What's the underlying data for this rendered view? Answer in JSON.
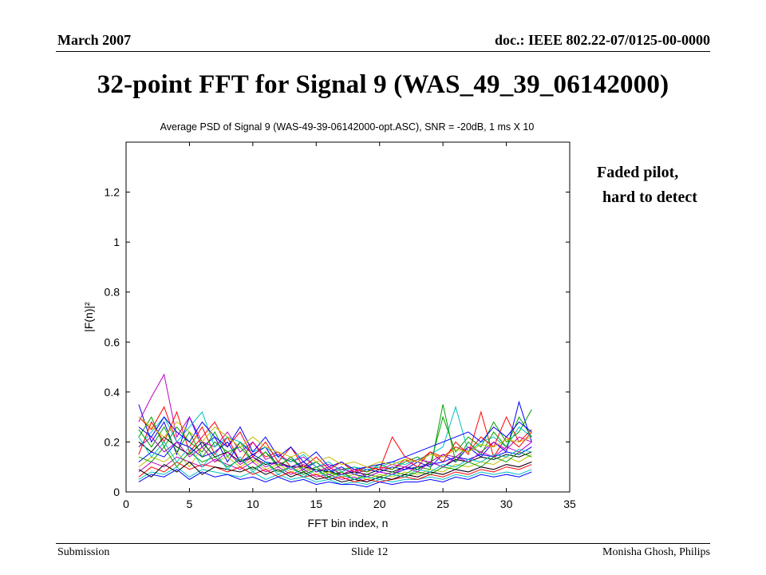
{
  "header": {
    "date": "March 2007",
    "doc": "doc.: IEEE 802.22-07/0125-00-0000"
  },
  "slide_title": "32-point FFT  for Signal 9 (WAS_49_39_06142000)",
  "annotation": {
    "line1": "Faded pilot,",
    "line2": "hard to detect"
  },
  "footer": {
    "left": "Submission",
    "center": "Slide 12",
    "right": "Monisha Ghosh, Philips"
  },
  "chart_data": {
    "type": "line",
    "title": "Average PSD of Signal 9 (WAS-49-39-06142000-opt.ASC), SNR = -20dB, 1 ms X 10",
    "xlabel": "FFT bin index, n",
    "ylabel": "|F(n)|²",
    "xlim": [
      0,
      35
    ],
    "ylim": [
      0,
      1.4
    ],
    "xticks": [
      0,
      5,
      10,
      15,
      20,
      25,
      30,
      35
    ],
    "yticks": [
      0,
      0.2,
      0.4,
      0.6,
      0.8,
      1,
      1.2
    ],
    "x": [
      1,
      2,
      3,
      4,
      5,
      6,
      7,
      8,
      9,
      10,
      11,
      12,
      13,
      14,
      15,
      16,
      17,
      18,
      19,
      20,
      21,
      22,
      23,
      24,
      25,
      26,
      27,
      28,
      29,
      30,
      31,
      32
    ],
    "series_count_note": "many overlaid traces",
    "series": [
      {
        "color": "#0000ff",
        "values": [
          0.35,
          0.2,
          0.28,
          0.15,
          0.3,
          0.18,
          0.22,
          0.12,
          0.2,
          0.15,
          0.18,
          0.1,
          0.14,
          0.09,
          0.12,
          0.08,
          0.1,
          0.07,
          0.09,
          0.08,
          0.1,
          0.09,
          0.12,
          0.1,
          0.15,
          0.12,
          0.18,
          0.14,
          0.2,
          0.16,
          0.36,
          0.2
        ]
      },
      {
        "color": "#ff0000",
        "values": [
          0.3,
          0.25,
          0.34,
          0.2,
          0.18,
          0.26,
          0.15,
          0.22,
          0.12,
          0.2,
          0.14,
          0.16,
          0.1,
          0.12,
          0.08,
          0.1,
          0.07,
          0.09,
          0.08,
          0.1,
          0.09,
          0.13,
          0.1,
          0.16,
          0.12,
          0.2,
          0.15,
          0.32,
          0.14,
          0.22,
          0.18,
          0.24
        ]
      },
      {
        "color": "#00a000",
        "values": [
          0.22,
          0.3,
          0.18,
          0.26,
          0.2,
          0.16,
          0.24,
          0.14,
          0.2,
          0.12,
          0.16,
          0.11,
          0.13,
          0.1,
          0.12,
          0.08,
          0.09,
          0.1,
          0.08,
          0.11,
          0.09,
          0.12,
          0.14,
          0.11,
          0.3,
          0.16,
          0.22,
          0.18,
          0.28,
          0.2,
          0.24,
          0.33
        ]
      },
      {
        "color": "#c000c0",
        "values": [
          0.28,
          0.38,
          0.47,
          0.22,
          0.3,
          0.2,
          0.18,
          0.24,
          0.16,
          0.2,
          0.13,
          0.15,
          0.12,
          0.14,
          0.1,
          0.11,
          0.09,
          0.08,
          0.1,
          0.09,
          0.11,
          0.1,
          0.13,
          0.12,
          0.15,
          0.14,
          0.18,
          0.16,
          0.2,
          0.17,
          0.22,
          0.2
        ]
      },
      {
        "color": "#00c0c0",
        "values": [
          0.18,
          0.24,
          0.3,
          0.2,
          0.26,
          0.32,
          0.18,
          0.22,
          0.2,
          0.16,
          0.18,
          0.14,
          0.12,
          0.15,
          0.1,
          0.12,
          0.08,
          0.1,
          0.09,
          0.1,
          0.12,
          0.11,
          0.13,
          0.15,
          0.18,
          0.34,
          0.16,
          0.2,
          0.22,
          0.18,
          0.26,
          0.22
        ]
      },
      {
        "color": "#000000",
        "values": [
          0.2,
          0.16,
          0.22,
          0.18,
          0.15,
          0.2,
          0.14,
          0.16,
          0.12,
          0.14,
          0.11,
          0.12,
          0.1,
          0.1,
          0.09,
          0.08,
          0.07,
          0.08,
          0.07,
          0.09,
          0.08,
          0.1,
          0.09,
          0.12,
          0.1,
          0.13,
          0.12,
          0.14,
          0.13,
          0.15,
          0.14,
          0.16
        ]
      },
      {
        "color": "#ff0000",
        "values": [
          0.15,
          0.28,
          0.2,
          0.32,
          0.16,
          0.22,
          0.28,
          0.18,
          0.24,
          0.14,
          0.2,
          0.12,
          0.18,
          0.1,
          0.14,
          0.09,
          0.12,
          0.08,
          0.1,
          0.09,
          0.22,
          0.14,
          0.12,
          0.16,
          0.14,
          0.18,
          0.16,
          0.22,
          0.18,
          0.3,
          0.2,
          0.25
        ]
      },
      {
        "color": "#0000ff",
        "values": [
          0.12,
          0.16,
          0.14,
          0.2,
          0.18,
          0.14,
          0.16,
          0.2,
          0.12,
          0.15,
          0.12,
          0.11,
          0.1,
          0.12,
          0.08,
          0.09,
          0.06,
          0.07,
          0.06,
          0.08,
          0.07,
          0.09,
          0.1,
          0.11,
          0.12,
          0.14,
          0.13,
          0.15,
          0.14,
          0.16,
          0.15,
          0.18
        ]
      },
      {
        "color": "#00a000",
        "values": [
          0.25,
          0.18,
          0.26,
          0.16,
          0.24,
          0.14,
          0.2,
          0.16,
          0.18,
          0.12,
          0.16,
          0.1,
          0.14,
          0.08,
          0.1,
          0.07,
          0.08,
          0.05,
          0.07,
          0.06,
          0.08,
          0.07,
          0.1,
          0.09,
          0.35,
          0.12,
          0.2,
          0.15,
          0.24,
          0.18,
          0.3,
          0.22
        ]
      },
      {
        "color": "#c0c000",
        "values": [
          0.1,
          0.14,
          0.12,
          0.16,
          0.1,
          0.18,
          0.12,
          0.14,
          0.1,
          0.13,
          0.09,
          0.11,
          0.08,
          0.1,
          0.07,
          0.08,
          0.06,
          0.07,
          0.05,
          0.07,
          0.06,
          0.08,
          0.07,
          0.09,
          0.08,
          0.11,
          0.1,
          0.12,
          0.11,
          0.14,
          0.12,
          0.15
        ]
      },
      {
        "color": "#c000c0",
        "values": [
          0.08,
          0.12,
          0.1,
          0.14,
          0.12,
          0.1,
          0.13,
          0.11,
          0.09,
          0.12,
          0.08,
          0.1,
          0.07,
          0.09,
          0.06,
          0.07,
          0.05,
          0.06,
          0.04,
          0.06,
          0.05,
          0.07,
          0.06,
          0.08,
          0.07,
          0.09,
          0.08,
          0.1,
          0.09,
          0.11,
          0.1,
          0.12
        ]
      },
      {
        "color": "#00c0c0",
        "values": [
          0.05,
          0.08,
          0.07,
          0.1,
          0.06,
          0.09,
          0.08,
          0.07,
          0.06,
          0.08,
          0.05,
          0.07,
          0.05,
          0.06,
          0.04,
          0.05,
          0.03,
          0.04,
          0.03,
          0.05,
          0.04,
          0.05,
          0.05,
          0.06,
          0.05,
          0.07,
          0.06,
          0.08,
          0.07,
          0.08,
          0.07,
          0.09
        ]
      },
      {
        "color": "#ff0000",
        "values": [
          0.06,
          0.1,
          0.08,
          0.12,
          0.09,
          0.11,
          0.1,
          0.08,
          0.1,
          0.07,
          0.09,
          0.06,
          0.08,
          0.06,
          0.07,
          0.05,
          0.06,
          0.04,
          0.05,
          0.04,
          0.05,
          0.06,
          0.05,
          0.07,
          0.06,
          0.08,
          0.07,
          0.09,
          0.08,
          0.1,
          0.09,
          0.11
        ]
      },
      {
        "color": "#0000ff",
        "values": [
          0.26,
          0.22,
          0.3,
          0.24,
          0.2,
          0.28,
          0.22,
          0.18,
          0.26,
          0.16,
          0.22,
          0.14,
          0.18,
          0.12,
          0.16,
          0.1,
          0.12,
          0.09,
          0.1,
          0.11,
          0.12,
          0.14,
          0.16,
          0.18,
          0.2,
          0.22,
          0.24,
          0.2,
          0.26,
          0.22,
          0.28,
          0.24
        ]
      },
      {
        "color": "#00a000",
        "values": [
          0.14,
          0.12,
          0.18,
          0.1,
          0.16,
          0.12,
          0.14,
          0.1,
          0.13,
          0.09,
          0.12,
          0.08,
          0.1,
          0.07,
          0.09,
          0.06,
          0.08,
          0.05,
          0.06,
          0.05,
          0.07,
          0.06,
          0.08,
          0.07,
          0.1,
          0.09,
          0.12,
          0.1,
          0.14,
          0.12,
          0.16,
          0.14
        ]
      },
      {
        "color": "#000000",
        "values": [
          0.09,
          0.06,
          0.11,
          0.08,
          0.12,
          0.07,
          0.1,
          0.09,
          0.08,
          0.1,
          0.07,
          0.09,
          0.06,
          0.08,
          0.05,
          0.06,
          0.04,
          0.05,
          0.04,
          0.06,
          0.05,
          0.07,
          0.06,
          0.08,
          0.07,
          0.09,
          0.08,
          0.1,
          0.09,
          0.11,
          0.1,
          0.12
        ]
      },
      {
        "color": "#c0c000",
        "values": [
          0.3,
          0.26,
          0.22,
          0.28,
          0.24,
          0.2,
          0.26,
          0.22,
          0.18,
          0.22,
          0.18,
          0.16,
          0.14,
          0.16,
          0.12,
          0.14,
          0.11,
          0.12,
          0.1,
          0.12,
          0.11,
          0.13,
          0.12,
          0.15,
          0.14,
          0.17,
          0.16,
          0.19,
          0.18,
          0.21,
          0.2,
          0.22
        ]
      },
      {
        "color": "#c000c0",
        "values": [
          0.18,
          0.22,
          0.16,
          0.2,
          0.14,
          0.18,
          0.12,
          0.16,
          0.11,
          0.14,
          0.1,
          0.12,
          0.09,
          0.11,
          0.08,
          0.1,
          0.07,
          0.09,
          0.06,
          0.08,
          0.07,
          0.1,
          0.08,
          0.12,
          0.1,
          0.14,
          0.12,
          0.16,
          0.14,
          0.18,
          0.16,
          0.2
        ]
      },
      {
        "color": "#00c0c0",
        "values": [
          0.22,
          0.14,
          0.2,
          0.12,
          0.18,
          0.1,
          0.16,
          0.09,
          0.14,
          0.08,
          0.12,
          0.07,
          0.1,
          0.06,
          0.09,
          0.05,
          0.07,
          0.05,
          0.06,
          0.05,
          0.07,
          0.06,
          0.09,
          0.08,
          0.11,
          0.1,
          0.13,
          0.12,
          0.15,
          0.14,
          0.17,
          0.16
        ]
      },
      {
        "color": "#0000ff",
        "values": [
          0.04,
          0.07,
          0.06,
          0.09,
          0.05,
          0.08,
          0.06,
          0.07,
          0.05,
          0.06,
          0.04,
          0.06,
          0.04,
          0.05,
          0.03,
          0.04,
          0.03,
          0.03,
          0.02,
          0.04,
          0.03,
          0.04,
          0.04,
          0.05,
          0.04,
          0.06,
          0.05,
          0.07,
          0.06,
          0.07,
          0.06,
          0.08
        ]
      }
    ]
  }
}
